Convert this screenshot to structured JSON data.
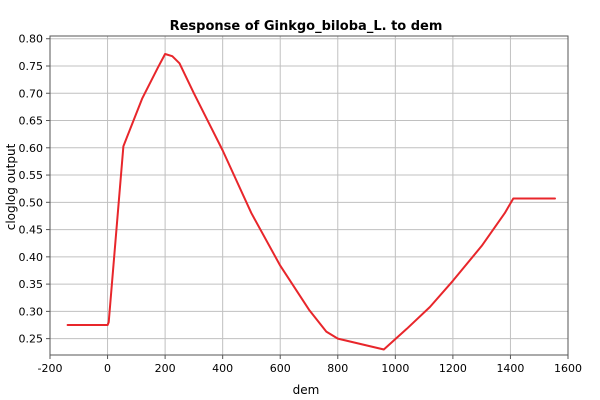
{
  "chart_data": {
    "type": "line",
    "title": "Response of Ginkgo_biloba_L. to dem",
    "xlabel": "dem",
    "ylabel": "cloglog output",
    "xlim": [
      -200,
      1600
    ],
    "ylim": [
      0.22,
      0.805
    ],
    "x_ticks": [
      -200,
      0,
      200,
      400,
      600,
      800,
      1000,
      1200,
      1400,
      1600
    ],
    "x_tick_labels": [
      "-200",
      "0",
      "200",
      "400",
      "600",
      "800",
      "1000",
      "1200",
      "1400",
      "1600"
    ],
    "y_ticks": [
      0.25,
      0.3,
      0.35,
      0.4,
      0.45,
      0.5,
      0.55,
      0.6,
      0.65,
      0.7,
      0.75,
      0.8
    ],
    "y_tick_labels": [
      "0.25",
      "0.30",
      "0.35",
      "0.40",
      "0.45",
      "0.50",
      "0.55",
      "0.60",
      "0.65",
      "0.70",
      "0.75",
      "0.80"
    ],
    "grid": true,
    "series": [
      {
        "color": "#e8262b",
        "x": [
          -139,
          0,
          4,
          55,
          120,
          175,
          200,
          225,
          250,
          300,
          400,
          500,
          600,
          700,
          760,
          800,
          960,
          1040,
          1120,
          1200,
          1300,
          1380,
          1410,
          1555
        ],
        "y": [
          0.275,
          0.275,
          0.28,
          0.603,
          0.69,
          0.747,
          0.772,
          0.768,
          0.755,
          0.7,
          0.595,
          0.48,
          0.384,
          0.303,
          0.263,
          0.25,
          0.23,
          0.268,
          0.308,
          0.356,
          0.42,
          0.48,
          0.507,
          0.507
        ]
      }
    ]
  }
}
